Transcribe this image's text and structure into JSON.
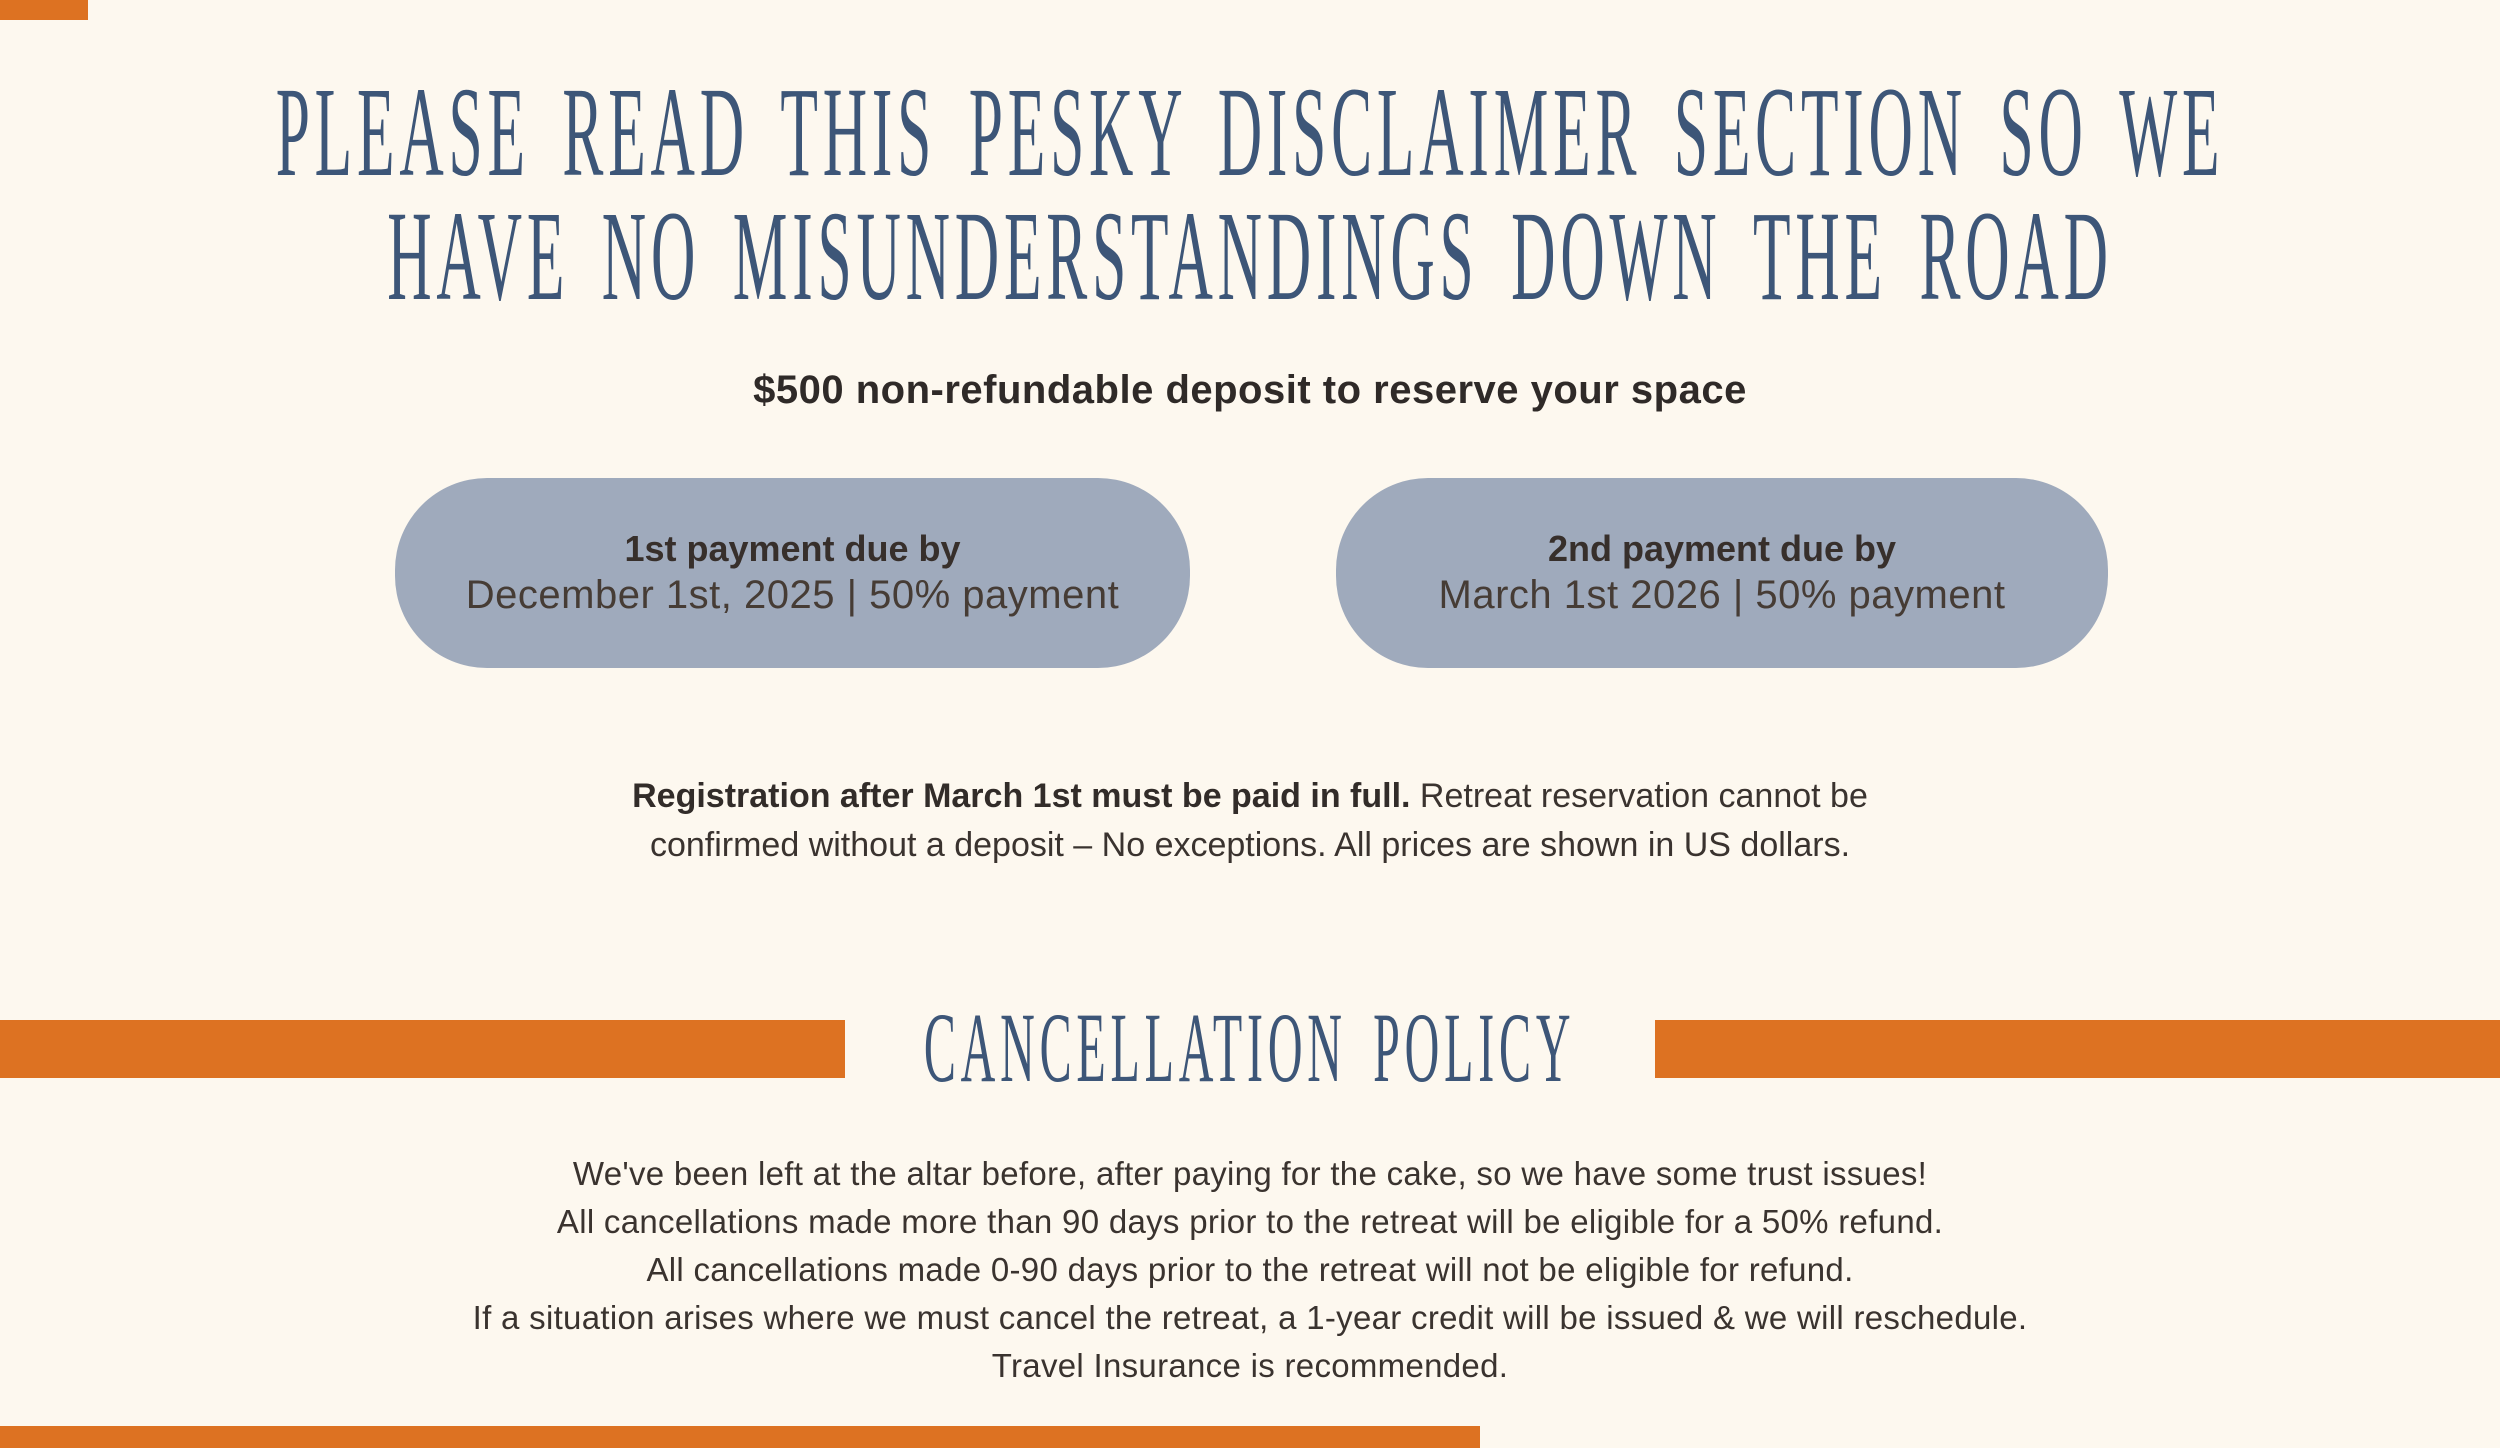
{
  "colors": {
    "bg": "#fdf8ef",
    "accent": "#dd7222",
    "blue": "#3d5678",
    "pill": "#9faabc",
    "ink": "#2f2a28"
  },
  "heading": {
    "line1": "PLEASE READ THIS PESKY DISCLAIMER SECTION SO WE",
    "line2": "HAVE NO MISUNDERSTANDINGS DOWN THE ROAD"
  },
  "deposit_note": "$500 non-refundable deposit to reserve your space",
  "payments": [
    {
      "title": "1st payment due by",
      "detail": "December 1st, 2025 | 50% payment"
    },
    {
      "title": "2nd payment due by",
      "detail": "March 1st 2026 | 50% payment"
    }
  ],
  "registration_note": {
    "line1_bold": "Registration after March 1st must be paid in full.",
    "line1_rest": " Retreat reservation cannot be",
    "line2": "confirmed without a deposit – No exceptions. All prices are shown in US dollars."
  },
  "cancellation": {
    "title": "CANCELLATION POLICY",
    "lines": [
      "We've been left at the altar before, after paying for the cake, so we have some trust issues!",
      "All cancellations made more than 90 days prior to the retreat will be eligible for a 50% refund.",
      "All cancellations made 0-90 days prior to the retreat will not be eligible for refund.",
      "If a situation arises where we must cancel the retreat, a 1-year credit will be issued & we will reschedule.",
      "Travel Insurance is recommended."
    ]
  }
}
